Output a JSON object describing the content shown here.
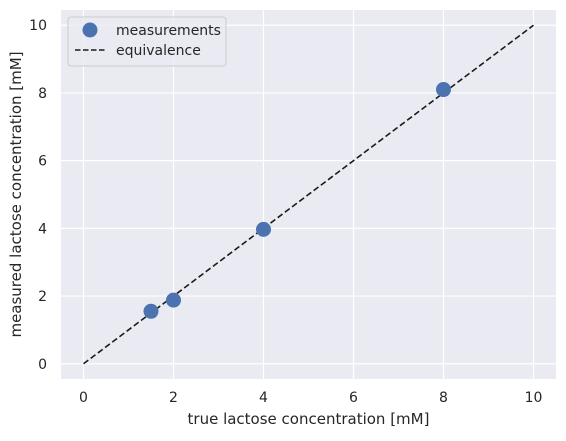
{
  "chart_data": {
    "type": "scatter",
    "xlabel": "true lactose concentration [mM]",
    "ylabel": "measured lactose concentration [mM]",
    "xlim": [
      -0.5,
      10.5
    ],
    "ylim": [
      -0.45,
      10.45
    ],
    "xticks": [
      0,
      2,
      4,
      6,
      8,
      10
    ],
    "yticks": [
      0,
      2,
      4,
      6,
      8,
      10
    ],
    "grid": true,
    "legend_position": "top-left",
    "series": [
      {
        "name": "measurements",
        "kind": "scatter",
        "color": "#4c72b0",
        "x": [
          1.5,
          2,
          4,
          8
        ],
        "y": [
          1.55,
          1.88,
          3.97,
          8.1
        ]
      },
      {
        "name": "equivalence",
        "kind": "line",
        "style": "dashed",
        "color": "#1a1a1a",
        "x": [
          0,
          10
        ],
        "y": [
          0,
          10
        ]
      }
    ],
    "colors": {
      "plot_background": "#eaeaf2",
      "grid": "#ffffff",
      "text": "#262626"
    }
  }
}
